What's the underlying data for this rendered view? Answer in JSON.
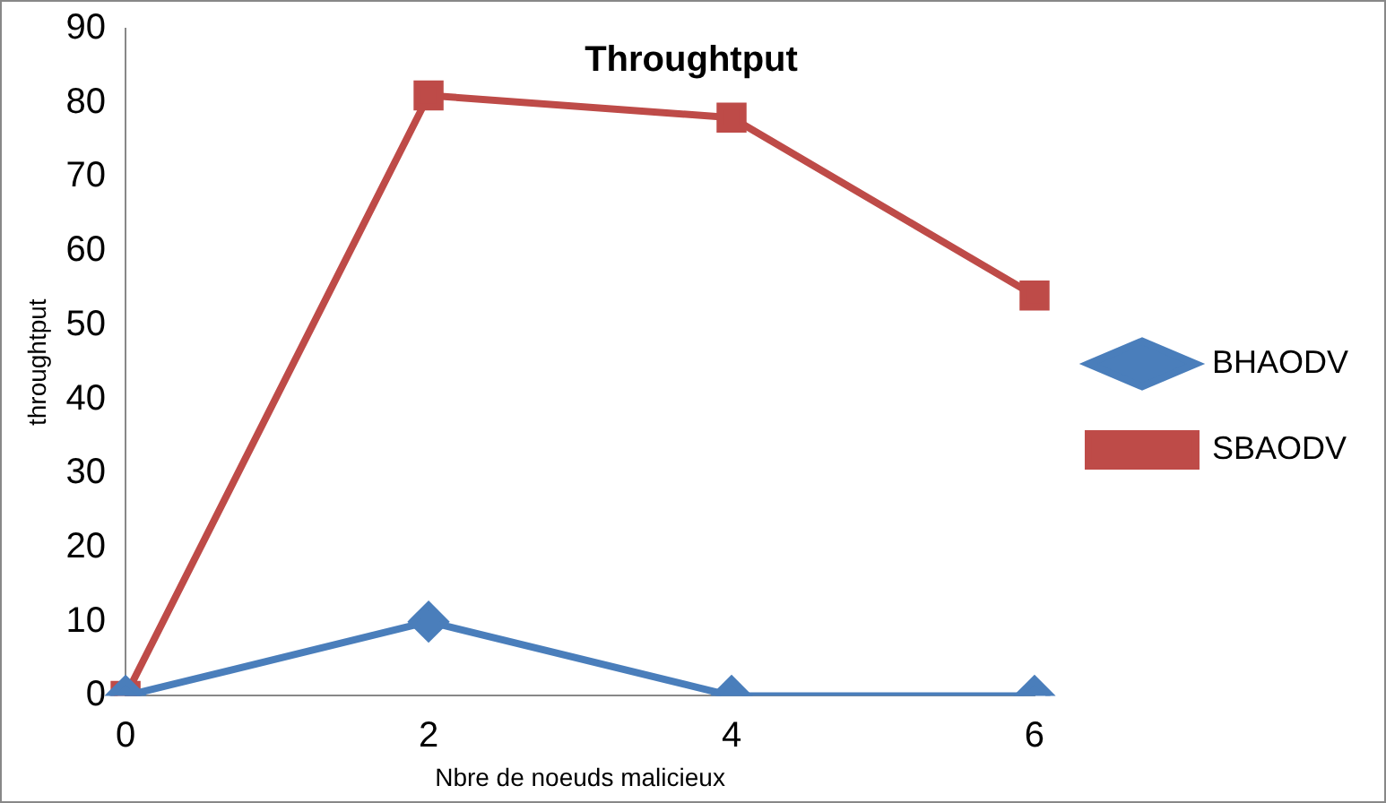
{
  "chart_data": {
    "type": "line",
    "title": "Throughtput",
    "xlabel": "Nbre de noeuds malicieux",
    "ylabel": "throughtput",
    "categories": [
      "0",
      "2",
      "4",
      "6"
    ],
    "series": [
      {
        "name": "BHAODV",
        "color": "#4a7ebb",
        "marker": "diamond",
        "values": [
          0,
          10,
          0,
          0
        ]
      },
      {
        "name": "SBAODV",
        "color": "#be4b48",
        "marker": "square",
        "values": [
          0,
          81,
          78,
          54
        ]
      }
    ],
    "ylim": [
      0,
      90
    ],
    "yticks": [
      0,
      10,
      20,
      30,
      40,
      50,
      60,
      70,
      80,
      90
    ],
    "grid": false,
    "legend": "right",
    "line_style": "solid"
  }
}
